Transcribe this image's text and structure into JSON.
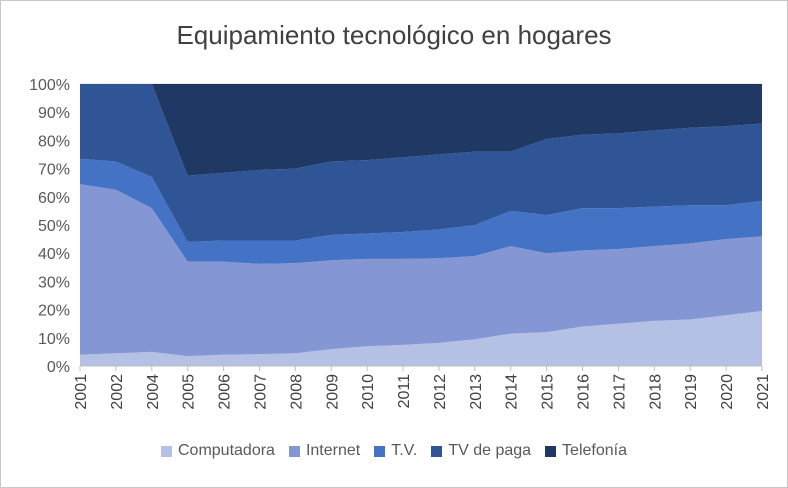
{
  "chart_data": {
    "type": "area",
    "stacked": true,
    "percent": true,
    "title": "Equipamiento tecnológico en hogares",
    "xlabel": "",
    "ylabel": "",
    "ylim": [
      0,
      100
    ],
    "yticks": [
      "0%",
      "10%",
      "20%",
      "30%",
      "40%",
      "50%",
      "60%",
      "70%",
      "80%",
      "90%",
      "100%"
    ],
    "categories": [
      "2001",
      "2002",
      "2004",
      "2005",
      "2006",
      "2007",
      "2008",
      "2009",
      "2010",
      "2011",
      "2012",
      "2013",
      "2014",
      "2015",
      "2016",
      "2017",
      "2018",
      "2019",
      "2020",
      "2021"
    ],
    "grid": true,
    "legend_position": "bottom",
    "series": [
      {
        "name": "Computadora",
        "color": "#b4c0e4",
        "values": [
          4,
          4.5,
          5,
          3.5,
          4,
          4.2,
          4.5,
          6,
          7,
          7.5,
          8.2,
          9.5,
          11.5,
          12,
          14,
          15,
          16,
          16.5,
          18,
          19.5
        ]
      },
      {
        "name": "Internet",
        "color": "#8497d4",
        "values": [
          60.5,
          58,
          51,
          33.5,
          33,
          32,
          32,
          31.5,
          31,
          30.5,
          30,
          29.5,
          31,
          28,
          27,
          26.5,
          26.5,
          27,
          27,
          26.5
        ]
      },
      {
        "name": "T.V.",
        "color": "#4472c4",
        "values": [
          9,
          10,
          11,
          7,
          7.5,
          8.3,
          8,
          9,
          9,
          9.5,
          10.2,
          11,
          12.5,
          13.5,
          15,
          14.5,
          14,
          13.5,
          12,
          12.5
        ]
      },
      {
        "name": "TV de paga",
        "color": "#2f5597",
        "values": [
          26.5,
          27.5,
          33,
          23.5,
          24,
          25,
          25.5,
          26,
          26,
          26.5,
          26.6,
          26,
          21,
          27,
          26,
          26.5,
          27,
          27.5,
          28,
          27.5
        ]
      },
      {
        "name": "Telefonía",
        "color": "#203864",
        "values": [
          0,
          0,
          0,
          32.5,
          31.5,
          30.5,
          30,
          27.5,
          27,
          26,
          25,
          24,
          24,
          19.5,
          18,
          17.5,
          16.5,
          15.5,
          15,
          14
        ]
      }
    ]
  }
}
